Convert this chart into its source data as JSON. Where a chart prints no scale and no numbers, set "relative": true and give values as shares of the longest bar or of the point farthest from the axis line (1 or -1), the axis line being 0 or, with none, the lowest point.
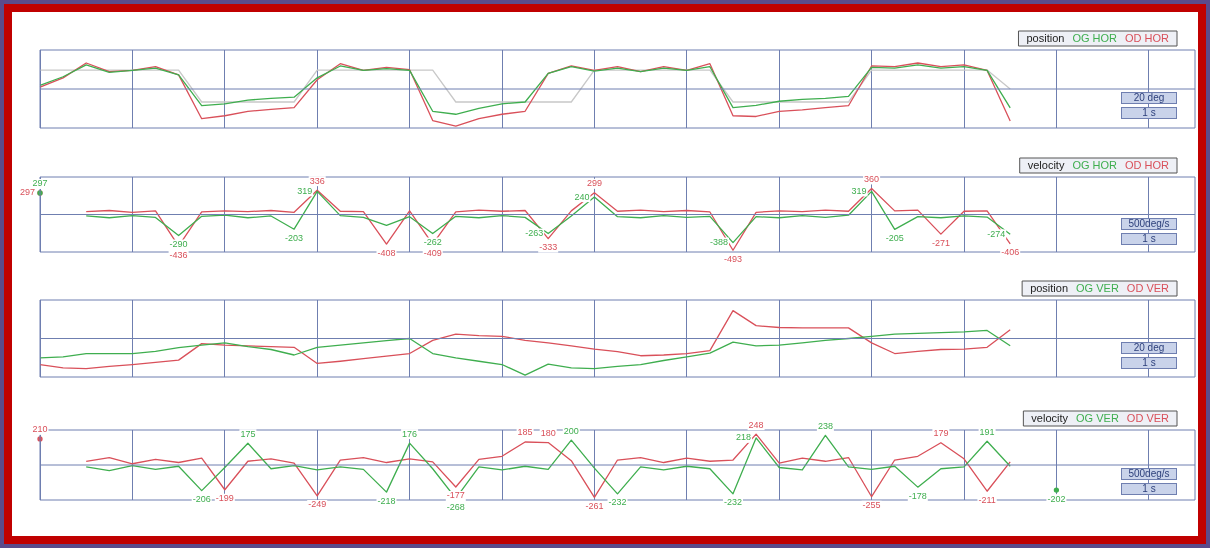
{
  "chart_data": [
    {
      "type": "line",
      "relative": true,
      "categories": [
        null,
        null,
        null,
        null,
        null,
        null,
        null,
        null,
        null,
        null,
        null,
        null,
        null,
        null,
        null,
        null,
        null,
        null,
        null,
        null,
        null,
        null,
        null,
        null,
        null,
        null,
        null,
        null,
        null,
        null,
        null,
        null,
        null,
        null,
        null,
        null,
        null,
        null,
        null,
        null,
        null,
        null,
        null,
        null,
        null,
        null,
        null,
        null,
        null,
        null,
        null
      ],
      "tick_labels": false,
      "grid": "x",
      "legend_title": "position",
      "marker": "none",
      "line_style": "solid",
      "annotations": [
        "20 deg",
        "1 s"
      ],
      "series": [
        {
          "name": "OG HOR",
          "color": "#3fae4f",
          "values": [
            0.1,
            0.33,
            0.65,
            0.45,
            0.5,
            0.56,
            0.38,
            -0.45,
            -0.4,
            -0.3,
            -0.25,
            -0.22,
            0.3,
            0.62,
            0.5,
            0.55,
            0.5,
            -0.6,
            -0.68,
            -0.52,
            -0.4,
            -0.35,
            0.42,
            0.6,
            0.48,
            0.56,
            0.47,
            0.56,
            0.5,
            0.6,
            -0.5,
            -0.44,
            -0.33,
            -0.28,
            -0.25,
            -0.2,
            0.58,
            0.56,
            0.65,
            0.56,
            0.6,
            0.5,
            -0.51,
            null,
            null,
            null,
            null,
            null,
            null,
            null,
            null
          ]
        },
        {
          "name": "OD HOR",
          "color": "#d9505a",
          "values": [
            0.05,
            0.3,
            0.7,
            0.47,
            0.5,
            0.6,
            0.38,
            -0.8,
            -0.72,
            -0.6,
            -0.55,
            -0.5,
            0.25,
            0.68,
            0.5,
            0.58,
            0.52,
            -0.85,
            -1,
            -0.8,
            -0.68,
            -0.6,
            0.42,
            0.62,
            0.5,
            0.6,
            0.47,
            0.6,
            0.5,
            0.68,
            -0.72,
            -0.74,
            -0.6,
            -0.56,
            -0.5,
            -0.45,
            0.62,
            0.6,
            0.7,
            0.6,
            0.65,
            0.5,
            -0.86,
            null,
            null,
            null,
            null,
            null,
            null,
            null,
            null
          ]
        },
        {
          "color": "#c8c8c8",
          "values": [
            0.51,
            0.51,
            0.51,
            0.51,
            0.51,
            0.51,
            0.51,
            -0.35,
            -0.35,
            -0.35,
            -0.35,
            -0.35,
            0.51,
            0.51,
            0.51,
            0.51,
            0.51,
            0.51,
            -0.35,
            -0.35,
            -0.35,
            -0.35,
            -0.35,
            -0.35,
            0.51,
            0.51,
            0.51,
            0.51,
            0.51,
            0.51,
            -0.35,
            -0.35,
            -0.35,
            -0.35,
            -0.35,
            -0.35,
            0.51,
            0.51,
            0.51,
            0.51,
            0.51,
            0.51,
            0,
            null,
            null,
            null,
            null,
            null,
            null,
            null,
            null
          ]
        }
      ]
    },
    {
      "type": "line",
      "categories": [
        null,
        null,
        null,
        null,
        null,
        null,
        null,
        null,
        null,
        null,
        null,
        null,
        null,
        null,
        null,
        null,
        null,
        null,
        null,
        null,
        null,
        null,
        null,
        null,
        null,
        null,
        null,
        null,
        null,
        null,
        null,
        null,
        null,
        null,
        null,
        null,
        null,
        null,
        null,
        null,
        null,
        null,
        null,
        null,
        null,
        null,
        null,
        null,
        null,
        null,
        null
      ],
      "tick_labels": false,
      "grid": "x",
      "legend_title": "velocity",
      "marker": "none",
      "line_style": "solid",
      "annotations": [
        "500deg/s",
        "1 s"
      ],
      "series": [
        {
          "name": "OG HOR",
          "color": "#3fae4f",
          "values": [
            297,
            null,
            -20,
            -45,
            -15,
            -40,
            -290,
            -25,
            -10,
            -45,
            -20,
            -203,
            319,
            -15,
            -40,
            -150,
            -30,
            -262,
            -25,
            -45,
            -15,
            -40,
            -263,
            -20,
            240,
            -30,
            -45,
            -15,
            -40,
            -25,
            -388,
            -30,
            -45,
            -15,
            -40,
            -10,
            319,
            -205,
            -30,
            -45,
            -20,
            -35,
            -274,
            null,
            null,
            null,
            null,
            null,
            null,
            null,
            null
          ],
          "value_labels": [
            "297",
            null,
            null,
            null,
            null,
            null,
            "-290",
            null,
            null,
            null,
            null,
            "-203",
            "319",
            null,
            null,
            null,
            null,
            "-262",
            null,
            null,
            null,
            null,
            "-263",
            null,
            "240",
            null,
            null,
            null,
            null,
            null,
            "-388",
            null,
            null,
            null,
            null,
            null,
            "319",
            "-205",
            null,
            null,
            null,
            null,
            "-274",
            null,
            null,
            null,
            null,
            null,
            null,
            null,
            null
          ]
        },
        {
          "name": "OD HOR",
          "color": "#d9505a",
          "values": [
            297,
            null,
            40,
            55,
            30,
            50,
            -436,
            35,
            50,
            40,
            55,
            30,
            336,
            45,
            40,
            -408,
            50,
            -409,
            35,
            60,
            45,
            55,
            -333,
            50,
            299,
            45,
            60,
            40,
            55,
            35,
            -493,
            30,
            50,
            40,
            60,
            45,
            360,
            50,
            60,
            -271,
            45,
            50,
            -406,
            null,
            null,
            null,
            null,
            null,
            null,
            null,
            null
          ],
          "value_labels": [
            "297",
            null,
            null,
            null,
            null,
            null,
            "-436",
            null,
            null,
            null,
            null,
            null,
            "336",
            null,
            null,
            "-408",
            null,
            "-409",
            null,
            null,
            null,
            null,
            "-333",
            null,
            "299",
            null,
            null,
            null,
            null,
            null,
            "-493",
            null,
            null,
            null,
            null,
            null,
            "360",
            null,
            null,
            "-271",
            null,
            null,
            "-406",
            null,
            null,
            null,
            null,
            null,
            null,
            null,
            null
          ]
        }
      ]
    },
    {
      "type": "line",
      "relative": true,
      "categories": [
        null,
        null,
        null,
        null,
        null,
        null,
        null,
        null,
        null,
        null,
        null,
        null,
        null,
        null,
        null,
        null,
        null,
        null,
        null,
        null,
        null,
        null,
        null,
        null,
        null,
        null,
        null,
        null,
        null,
        null,
        null,
        null,
        null,
        null,
        null,
        null,
        null,
        null,
        null,
        null,
        null,
        null,
        null,
        null,
        null,
        null,
        null,
        null,
        null,
        null,
        null
      ],
      "tick_labels": false,
      "grid": "x",
      "legend_title": "position",
      "marker": "none",
      "line_style": "solid",
      "annotations": [
        "20 deg",
        "1 s"
      ],
      "series": [
        {
          "name": "OG VER",
          "color": "#3fae4f",
          "values": [
            -0.53,
            -0.5,
            -0.41,
            -0.41,
            -0.41,
            -0.35,
            -0.25,
            -0.18,
            -0.12,
            -0.22,
            -0.3,
            -0.45,
            -0.24,
            -0.18,
            -0.12,
            -0.06,
            0,
            -0.41,
            -0.53,
            -0.62,
            -0.71,
            -1,
            -0.7,
            -0.8,
            -0.82,
            -0.76,
            -0.71,
            -0.6,
            -0.5,
            -0.4,
            -0.1,
            -0.2,
            -0.18,
            -0.12,
            -0.05,
            0,
            0.06,
            0.12,
            0.14,
            0.16,
            0.18,
            0.22,
            -0.2,
            null,
            null,
            null,
            null,
            null,
            null,
            null,
            null
          ]
        },
        {
          "name": "OD VER",
          "color": "#d9505a",
          "values": [
            -0.71,
            -0.8,
            -0.82,
            -0.76,
            -0.71,
            -0.65,
            -0.59,
            -0.14,
            -0.18,
            -0.2,
            -0.22,
            -0.24,
            -0.68,
            -0.62,
            -0.55,
            -0.48,
            -0.41,
            -0.05,
            0.12,
            0.08,
            0.06,
            -0.05,
            -0.12,
            -0.2,
            -0.29,
            -0.36,
            -0.47,
            -0.45,
            -0.41,
            -0.33,
            0.76,
            0.35,
            0.3,
            0.29,
            0.29,
            0.29,
            -0.12,
            -0.41,
            -0.35,
            -0.3,
            -0.29,
            -0.24,
            0.24,
            null,
            null,
            null,
            null,
            null,
            null,
            null,
            null
          ]
        }
      ]
    },
    {
      "type": "line",
      "categories": [
        null,
        null,
        null,
        null,
        null,
        null,
        null,
        null,
        null,
        null,
        null,
        null,
        null,
        null,
        null,
        null,
        null,
        null,
        null,
        null,
        null,
        null,
        null,
        null,
        null,
        null,
        null,
        null,
        null,
        null,
        null,
        null,
        null,
        null,
        null,
        null,
        null,
        null,
        null,
        null,
        null,
        null,
        null,
        null,
        null,
        null,
        null,
        null,
        null,
        null,
        null
      ],
      "tick_labels": false,
      "grid": "x",
      "legend_title": "velocity",
      "marker": "none",
      "line_style": "solid",
      "annotations": [
        "500deg/s",
        "1 s"
      ],
      "series": [
        {
          "name": "OG VER",
          "color": "#3fae4f",
          "values": [
            null,
            null,
            -15,
            -45,
            -5,
            -35,
            -10,
            -206,
            -20,
            175,
            -30,
            -5,
            -40,
            -15,
            -35,
            -218,
            176,
            -30,
            -268,
            -15,
            -40,
            -10,
            -35,
            200,
            -25,
            -232,
            -15,
            -40,
            -10,
            -30,
            -232,
            218,
            -20,
            -40,
            238,
            -15,
            -35,
            -10,
            -178,
            -30,
            -15,
            191,
            -10,
            null,
            -202,
            null,
            null,
            null,
            null,
            null,
            null
          ],
          "value_labels": [
            null,
            null,
            null,
            null,
            null,
            null,
            null,
            "-206",
            null,
            "175",
            null,
            null,
            null,
            null,
            null,
            "-218",
            "176",
            null,
            "-268",
            null,
            null,
            null,
            null,
            "200",
            null,
            "-232",
            null,
            null,
            null,
            null,
            "-232",
            "218",
            null,
            null,
            "238",
            null,
            null,
            null,
            "-178",
            null,
            null,
            "191",
            null,
            null,
            "-202",
            null,
            null,
            null,
            null,
            null,
            null
          ]
        },
        {
          "name": "OD VER",
          "color": "#d9505a",
          "values": [
            210,
            null,
            30,
            60,
            10,
            45,
            20,
            55,
            -199,
            30,
            50,
            15,
            -249,
            40,
            60,
            20,
            50,
            25,
            -177,
            45,
            70,
            185,
            180,
            35,
            -261,
            40,
            60,
            20,
            55,
            30,
            40,
            248,
            15,
            55,
            30,
            60,
            -255,
            40,
            70,
            179,
            50,
            -211,
            25,
            null,
            null,
            null,
            null,
            null,
            null,
            null,
            null
          ],
          "value_labels": [
            "210",
            null,
            null,
            null,
            null,
            null,
            null,
            null,
            "-199",
            null,
            null,
            null,
            "-249",
            null,
            null,
            null,
            null,
            null,
            "-177",
            null,
            null,
            "185",
            "180",
            null,
            "-261",
            null,
            null,
            null,
            null,
            null,
            null,
            "248",
            null,
            null,
            null,
            null,
            "-255",
            null,
            null,
            "179",
            null,
            "-211",
            null,
            null,
            null,
            null,
            null,
            null,
            null,
            null,
            null
          ]
        }
      ]
    }
  ]
}
